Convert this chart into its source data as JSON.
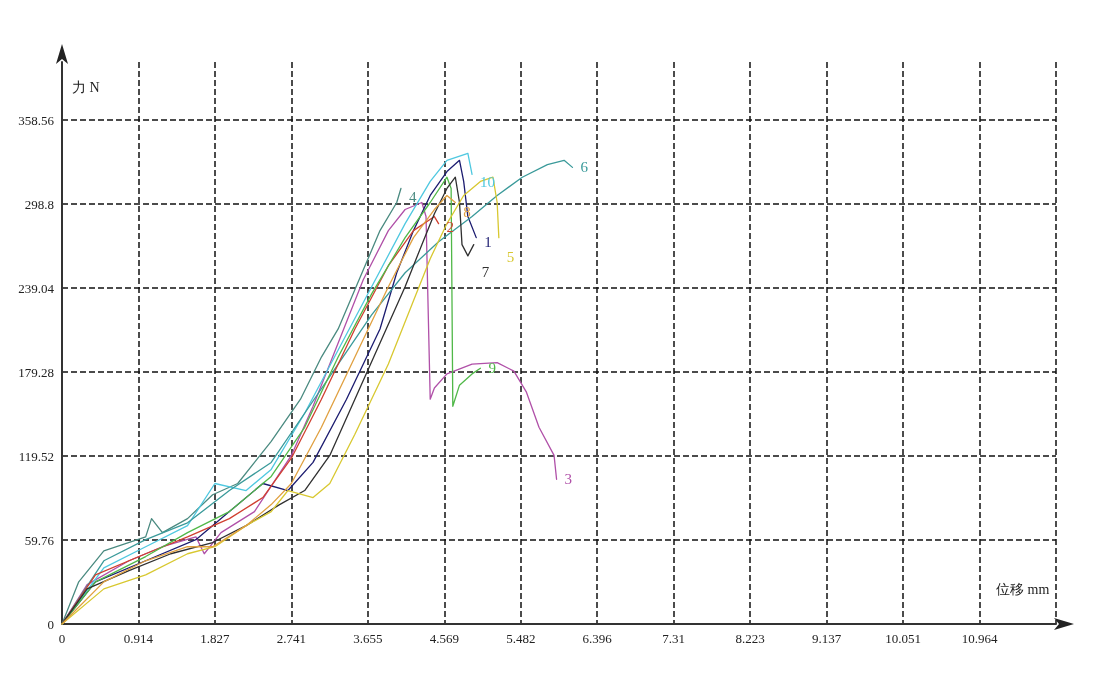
{
  "chart_data": {
    "type": "line",
    "xlabel": "位移 mm",
    "ylabel": "力 N",
    "xlim": [
      0,
      11.878
    ],
    "ylim": [
      0,
      400
    ],
    "xticks": [
      0,
      0.914,
      1.827,
      2.741,
      3.655,
      4.569,
      5.482,
      6.396,
      7.31,
      8.223,
      9.137,
      10.051,
      10.964,
      {
        "value": 11.878,
        "label": null
      }
    ],
    "yticks": [
      0,
      59.76,
      119.52,
      179.28,
      239.04,
      298.8,
      358.56
    ],
    "grid": true,
    "legend": false,
    "marker": "none",
    "line_style": "solid",
    "series": [
      {
        "name": "4",
        "color": "#4a8a80",
        "x": [
          0,
          0.2,
          0.5,
          1.0,
          1.07,
          1.2,
          1.5,
          1.8,
          2.1,
          2.5,
          2.85,
          3.1,
          3.3,
          3.55,
          3.8,
          4.0,
          4.05
        ],
        "values": [
          0,
          30,
          52,
          62,
          75,
          65,
          75,
          92,
          100,
          130,
          160,
          190,
          210,
          245,
          280,
          300,
          310
        ]
      },
      {
        "name": "3",
        "color": "#b050a8",
        "x": [
          0,
          0.3,
          0.8,
          1.2,
          1.6,
          1.7,
          1.9,
          2.3,
          2.741,
          3.0,
          3.3,
          3.6,
          3.9,
          4.1,
          4.3,
          4.35,
          4.4,
          4.45,
          4.6,
          4.9,
          5.2,
          5.4,
          5.55,
          5.7,
          5.88,
          5.91
        ],
        "values": [
          0,
          28,
          45,
          55,
          62,
          50,
          65,
          80,
          120,
          155,
          200,
          245,
          280,
          295,
          300,
          290,
          160,
          168,
          178,
          185,
          186,
          180,
          165,
          140,
          120,
          103
        ]
      },
      {
        "name": "1",
        "color": "#1c1c70",
        "x": [
          0,
          0.4,
          1.0,
          1.6,
          2.0,
          2.4,
          2.7,
          3.0,
          3.4,
          3.8,
          4.0,
          4.2,
          4.4,
          4.6,
          4.75,
          4.8,
          4.85,
          4.95
        ],
        "values": [
          0,
          30,
          45,
          60,
          80,
          100,
          95,
          115,
          160,
          210,
          250,
          280,
          305,
          322,
          330,
          315,
          290,
          275
        ]
      },
      {
        "name": "10",
        "color": "#4fc8e0",
        "x": [
          0,
          0.5,
          1.0,
          1.5,
          1.827,
          2.2,
          2.5,
          2.9,
          3.3,
          3.7,
          4.1,
          4.4,
          4.6,
          4.85,
          4.9
        ],
        "values": [
          0,
          40,
          55,
          70,
          100,
          95,
          110,
          150,
          195,
          240,
          285,
          315,
          330,
          335,
          320
        ]
      },
      {
        "name": "6",
        "color": "#3a9a9a",
        "x": [
          0,
          0.5,
          1.0,
          1.5,
          2.0,
          2.5,
          2.9,
          3.3,
          3.7,
          4.1,
          4.5,
          4.9,
          5.2,
          5.5,
          5.8,
          6.0,
          6.1
        ],
        "values": [
          0,
          45,
          60,
          72,
          95,
          115,
          150,
          185,
          220,
          250,
          272,
          290,
          305,
          318,
          327,
          330,
          325
        ]
      },
      {
        "name": "2",
        "color": "#d04030",
        "x": [
          0,
          0.4,
          1.0,
          1.5,
          2.0,
          2.4,
          2.741,
          3.1,
          3.5,
          3.9,
          4.2,
          4.45,
          4.5
        ],
        "values": [
          0,
          35,
          50,
          62,
          75,
          90,
          118,
          160,
          210,
          255,
          280,
          290,
          285
        ]
      },
      {
        "name": "9",
        "color": "#50b848",
        "x": [
          0,
          0.4,
          1.0,
          1.5,
          2.0,
          2.5,
          2.9,
          3.3,
          3.7,
          4.1,
          4.4,
          4.6,
          4.65,
          4.67,
          4.75,
          4.9,
          5.0
        ],
        "values": [
          0,
          30,
          48,
          65,
          80,
          105,
          140,
          190,
          235,
          275,
          300,
          318,
          310,
          155,
          170,
          178,
          182
        ]
      },
      {
        "name": "7",
        "color": "#303030",
        "x": [
          0,
          0.3,
          0.8,
          1.3,
          1.8,
          2.2,
          2.6,
          2.9,
          3.2,
          3.5,
          3.8,
          4.1,
          4.3,
          4.45,
          4.6,
          4.7,
          4.75,
          4.78,
          4.85,
          4.92
        ],
        "values": [
          0,
          25,
          38,
          50,
          58,
          70,
          85,
          95,
          120,
          160,
          200,
          240,
          270,
          292,
          310,
          318,
          300,
          270,
          262,
          270
        ]
      },
      {
        "name": "5",
        "color": "#d8c830",
        "x": [
          0,
          0.5,
          1.0,
          1.5,
          1.827,
          2.2,
          2.5,
          2.7,
          3.0,
          3.2,
          3.5,
          3.9,
          4.2,
          4.4,
          4.6,
          4.8,
          5.0,
          5.15,
          5.2,
          5.22
        ],
        "values": [
          0,
          25,
          35,
          50,
          55,
          70,
          80,
          95,
          90,
          100,
          135,
          185,
          230,
          260,
          285,
          305,
          315,
          318,
          300,
          275
        ]
      },
      {
        "name": "8",
        "color": "#e0a040",
        "x": [
          0,
          0.5,
          1.0,
          1.5,
          1.8,
          2.2,
          2.5,
          2.741,
          3.1,
          3.5,
          3.9,
          4.2,
          4.45,
          4.6,
          4.7
        ],
        "values": [
          0,
          30,
          45,
          55,
          55,
          70,
          85,
          100,
          140,
          190,
          240,
          275,
          295,
          305,
          300
        ]
      }
    ]
  }
}
